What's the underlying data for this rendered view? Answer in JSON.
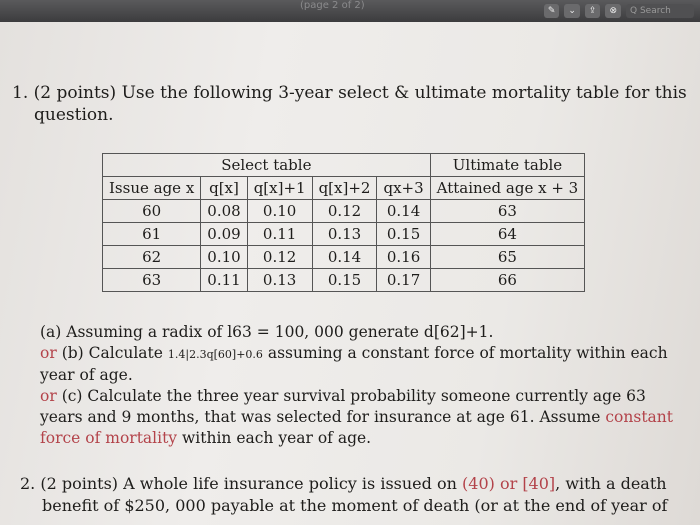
{
  "window": {
    "title": "(page 2 of 2)",
    "toolbar": {
      "pen": "✎",
      "chevron": "⌄",
      "share": "⇪",
      "markup": "⊗",
      "search_placeholder": "Q Search"
    }
  },
  "q1": {
    "line1": "1. (2 points) Use the following 3-year select & ultimate mortality table for this",
    "line2": "question."
  },
  "table": {
    "select_header": "Select table",
    "ultimate_header": "Ultimate table",
    "columns": [
      "Issue age x",
      "q[x]",
      "q[x]+1",
      "q[x]+2",
      "qx+3",
      "Attained age x + 3"
    ],
    "rows": [
      [
        "60",
        "0.08",
        "0.10",
        "0.12",
        "0.14",
        "63"
      ],
      [
        "61",
        "0.09",
        "0.11",
        "0.13",
        "0.15",
        "64"
      ],
      [
        "62",
        "0.10",
        "0.12",
        "0.14",
        "0.16",
        "65"
      ],
      [
        "63",
        "0.11",
        "0.13",
        "0.15",
        "0.17",
        "66"
      ]
    ]
  },
  "parts": {
    "a": "(a) Assuming a radix of l63 = 100, 000 generate d[62]+1.",
    "b_or": "or",
    "b_main": "(b) Calculate",
    "b_sub": "1.4|2.3q[60]+0.6",
    "b_rest": "assuming a constant force of mortality within each",
    "b_line2": "year of age.",
    "c_or": "or",
    "c_line1": "(c) Calculate the three year survival probability someone currently age 63",
    "c_line2_main": "years and 9 months, that was selected for insurance at age 61. Assume",
    "c_line2_red": "constant",
    "c_line3_red": "force of mortality",
    "c_line3_rest": "within each year of age."
  },
  "q2": {
    "p1": "2. (2 points) A whole life insurance policy is issued on",
    "r1": "(40) or [40]",
    "p2": ", with a death",
    "line2": "benefit of $250, 000 payable at the moment of death (or at the end of year of"
  },
  "colors": {
    "accent_red": "#b3434a"
  }
}
